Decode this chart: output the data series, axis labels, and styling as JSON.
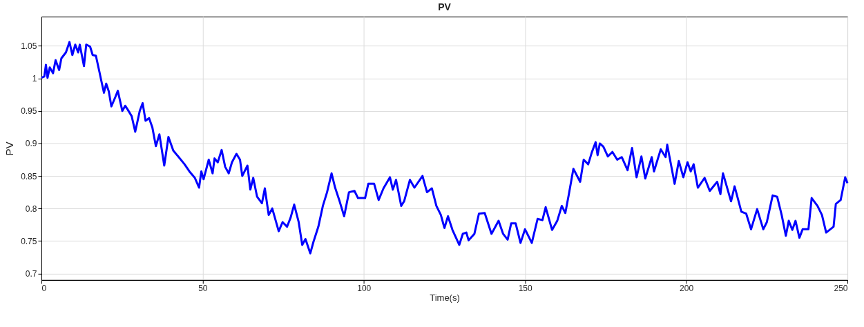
{
  "chart_data": {
    "type": "line",
    "title": "PV",
    "xlabel": "Time(s)",
    "ylabel": "PV",
    "xlim": [
      0,
      250
    ],
    "xticks": [
      0,
      50,
      100,
      150,
      200,
      250
    ],
    "ylim": [
      0.69,
      1.095
    ],
    "yticks": [
      0.7,
      0.75,
      0.8,
      0.85,
      0.9,
      0.95,
      1,
      1.05
    ],
    "grid": true,
    "marker": "none",
    "line_style": "solid",
    "series": [
      {
        "color": "#0000ff",
        "x": [
          0,
          0.9,
          1.4,
          1.9,
          2.6,
          3.6,
          4.4,
          5.5,
          6.2,
          7.6,
          8.7,
          9.6,
          10.5,
          11.4,
          11.9,
          13.2,
          13.9,
          15.1,
          15.9,
          16.9,
          18.0,
          18.6,
          19.4,
          20.1,
          20.9,
          21.7,
          22.9,
          23.7,
          25.1,
          26.0,
          26.9,
          28.0,
          29.1,
          30.5,
          31.4,
          32.3,
          33.4,
          34.4,
          35.5,
          36.6,
          38.1,
          39.4,
          40.9,
          42.6,
          44.4,
          45.9,
          47.6,
          48.9,
          49.6,
          50.3,
          51.9,
          53.1,
          53.7,
          54.7,
          55.9,
          57.0,
          58.1,
          59.1,
          60.5,
          61.6,
          62.3,
          63.9,
          64.8,
          65.7,
          66.9,
          68.4,
          69.3,
          70.5,
          71.6,
          73.6,
          74.8,
          76.2,
          77.3,
          78.4,
          79.8,
          80.9,
          81.9,
          83.4,
          84.4,
          85.9,
          87.3,
          88.6,
          90.0,
          91.1,
          92.5,
          93.9,
          95.4,
          97.1,
          98.2,
          100.4,
          101.4,
          103.2,
          104.6,
          106.1,
          108.1,
          109.0,
          110.0,
          111.6,
          112.5,
          114.3,
          115.7,
          118.2,
          119.6,
          121.1,
          122.5,
          123.9,
          125.0,
          126.1,
          127.5,
          129.6,
          130.7,
          131.8,
          132.5,
          134.3,
          135.7,
          137.5,
          139.6,
          141.8,
          143.2,
          144.6,
          145.7,
          147.1,
          148.6,
          150.0,
          152.1,
          153.9,
          155.4,
          156.4,
          158.4,
          160.0,
          161.4,
          162.5,
          163.6,
          165.0,
          167.1,
          168.2,
          169.6,
          170.7,
          171.9,
          172.5,
          173.2,
          174.3,
          175.7,
          177.1,
          178.6,
          180.0,
          181.8,
          183.2,
          184.6,
          186.1,
          187.3,
          189.3,
          190.0,
          192.1,
          193.6,
          194.1,
          196.4,
          197.7,
          199.1,
          200.4,
          201.4,
          202.3,
          203.6,
          205.7,
          207.3,
          209.6,
          210.6,
          211.4,
          213.9,
          215.0,
          217.1,
          218.6,
          220.1,
          222.0,
          223.9,
          225.0,
          226.8,
          228.2,
          229.6,
          230.9,
          231.8,
          232.9,
          233.9,
          235.1,
          236.1,
          237.9,
          238.9,
          240.7,
          242.1,
          243.4,
          245.7,
          246.4,
          247.9,
          249.3,
          250.0
        ],
        "values": [
          1.001,
          1.003,
          1.021,
          1.001,
          1.017,
          1.008,
          1.028,
          1.013,
          1.031,
          1.04,
          1.056,
          1.036,
          1.052,
          1.04,
          1.052,
          1.019,
          1.052,
          1.049,
          1.036,
          1.035,
          1.01,
          0.996,
          0.978,
          0.992,
          0.98,
          0.957,
          0.971,
          0.981,
          0.95,
          0.958,
          0.951,
          0.942,
          0.918,
          0.95,
          0.962,
          0.935,
          0.939,
          0.925,
          0.896,
          0.914,
          0.866,
          0.91,
          0.889,
          0.879,
          0.868,
          0.857,
          0.847,
          0.832,
          0.857,
          0.845,
          0.875,
          0.854,
          0.877,
          0.871,
          0.89,
          0.864,
          0.854,
          0.871,
          0.884,
          0.875,
          0.85,
          0.866,
          0.829,
          0.847,
          0.818,
          0.808,
          0.831,
          0.79,
          0.8,
          0.765,
          0.779,
          0.772,
          0.786,
          0.806,
          0.779,
          0.744,
          0.753,
          0.731,
          0.749,
          0.772,
          0.804,
          0.825,
          0.854,
          0.832,
          0.811,
          0.788,
          0.825,
          0.827,
          0.816,
          0.816,
          0.838,
          0.838,
          0.813,
          0.831,
          0.848,
          0.829,
          0.844,
          0.804,
          0.811,
          0.844,
          0.832,
          0.85,
          0.825,
          0.831,
          0.804,
          0.79,
          0.77,
          0.788,
          0.767,
          0.744,
          0.761,
          0.763,
          0.751,
          0.761,
          0.792,
          0.793,
          0.761,
          0.781,
          0.761,
          0.752,
          0.777,
          0.777,
          0.747,
          0.768,
          0.747,
          0.784,
          0.782,
          0.802,
          0.767,
          0.781,
          0.804,
          0.793,
          0.822,
          0.861,
          0.841,
          0.875,
          0.868,
          0.886,
          0.902,
          0.882,
          0.9,
          0.895,
          0.88,
          0.887,
          0.875,
          0.879,
          0.859,
          0.893,
          0.848,
          0.88,
          0.846,
          0.879,
          0.857,
          0.891,
          0.879,
          0.898,
          0.838,
          0.873,
          0.848,
          0.871,
          0.857,
          0.868,
          0.832,
          0.847,
          0.827,
          0.841,
          0.822,
          0.854,
          0.811,
          0.834,
          0.795,
          0.792,
          0.768,
          0.799,
          0.768,
          0.779,
          0.82,
          0.818,
          0.79,
          0.758,
          0.781,
          0.767,
          0.781,
          0.755,
          0.768,
          0.768,
          0.816,
          0.804,
          0.79,
          0.763,
          0.772,
          0.807,
          0.813,
          0.848,
          0.839
        ]
      }
    ]
  }
}
